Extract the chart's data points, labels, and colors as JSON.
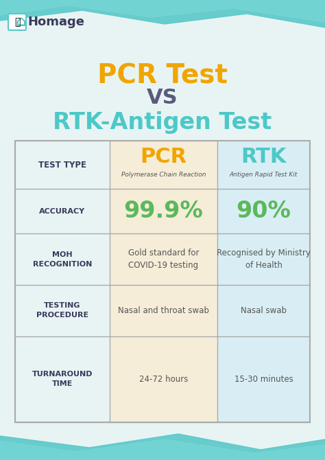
{
  "bg_color": "#e8f4f4",
  "title_line1": "PCR Test",
  "title_vs": "VS",
  "title_line2": "RTK-Antigen Test",
  "title_line1_color": "#f0a500",
  "title_vs_color": "#5a5a7a",
  "title_line2_color": "#4dc8c8",
  "logo_text": "Homage",
  "table_header_row": [
    "TEST TYPE",
    "PCR",
    "RTK"
  ],
  "table_header_sub": [
    "",
    "Polymerase Chain Reaction",
    "Antigen Rapid Test Kit"
  ],
  "rows": [
    [
      "ACCURACY",
      "99.9%",
      "90%"
    ],
    [
      "MOH RECOGNITION",
      "Gold standard for\nCOVID-19 testing",
      "Recognised by Ministry\nof Health"
    ],
    [
      "TESTING PROCEDURE",
      "Nasal and throat swab",
      "Nasal swab"
    ],
    [
      "TURNAROUND TIME",
      "24-72 hours",
      "15-30 minutes"
    ]
  ],
  "col1_bg": "#f5edd8",
  "col2_bg": "#d9eef4",
  "header_row_bg": "#f5edd8",
  "header_row2_bg": "#d9eef4",
  "table_border_color": "#aaaaaa",
  "row_label_color": "#3a3a5c",
  "pcr_color": "#f0a500",
  "rtk_color": "#4dc8c8",
  "accuracy_color": "#5cb85c",
  "cell_text_color": "#555555",
  "header_bg": "#ffffff",
  "wave_top_color": "#5ac8c8",
  "wave_bottom_color": "#5ac8c8"
}
